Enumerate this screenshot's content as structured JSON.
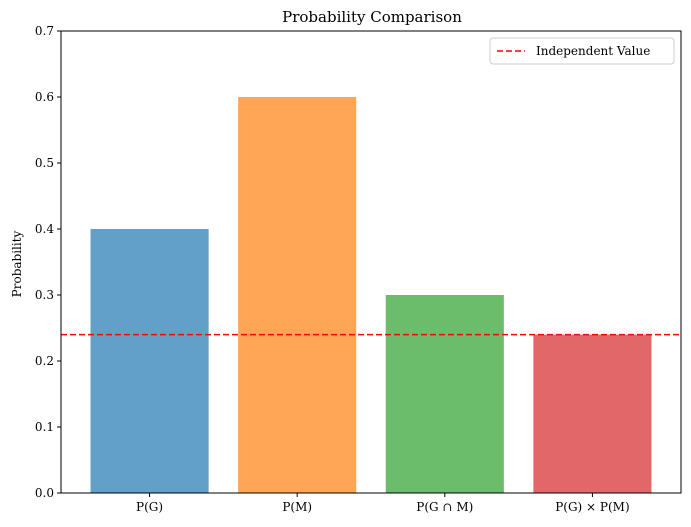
{
  "chart_data": {
    "type": "bar",
    "title": "Probability Comparison",
    "xlabel": "",
    "ylabel": "Probability",
    "categories": [
      "P(G)",
      "P(M)",
      "P(G ∩ M)",
      "P(G) × P(M)"
    ],
    "values": [
      0.4,
      0.6,
      0.3,
      0.24
    ],
    "bar_colors": [
      "#1f77b4",
      "#ff7f0e",
      "#2ca02c",
      "#d62728"
    ],
    "bar_alpha": 0.7,
    "ylim": [
      0,
      0.7
    ],
    "yticks": [
      "0.0",
      "0.1",
      "0.2",
      "0.3",
      "0.4",
      "0.5",
      "0.6",
      "0.7"
    ],
    "grid": false,
    "reference_line": {
      "label": "Independent Value",
      "y": 0.24,
      "color": "#ff0000",
      "style": "dashed"
    },
    "legend": {
      "placement": "top-right"
    }
  }
}
